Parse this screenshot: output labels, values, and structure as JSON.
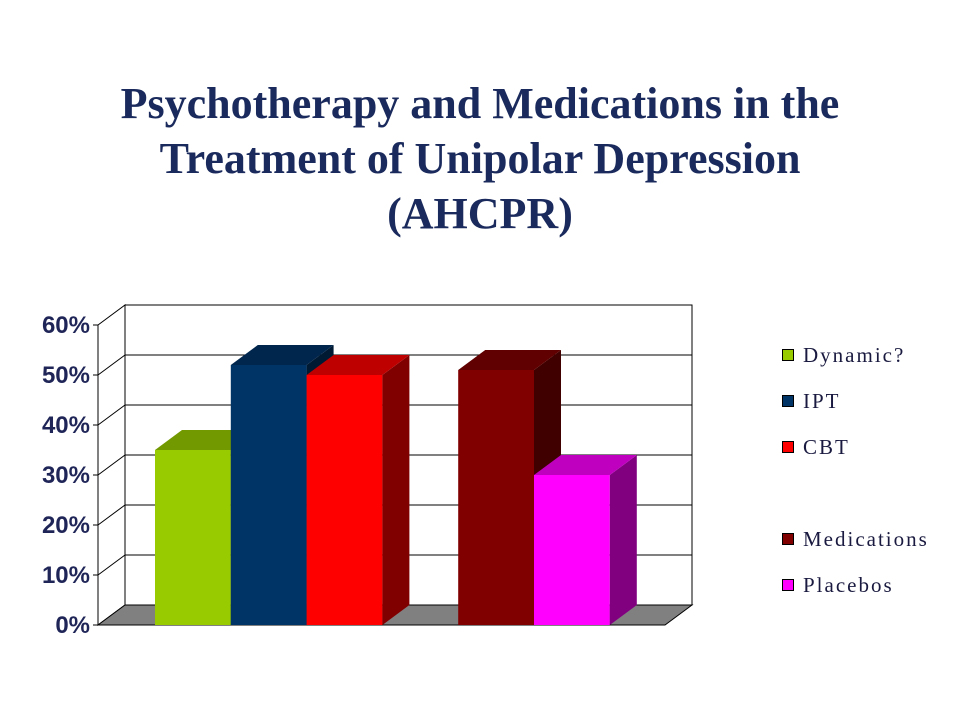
{
  "chart_data": {
    "type": "bar",
    "title": "Psychotherapy and Medications in the Treatment of Unipolar Depression (AHCPR)",
    "ylim": [
      0,
      60
    ],
    "yticks": [
      "0%",
      "10%",
      "20%",
      "30%",
      "40%",
      "50%",
      "60%"
    ],
    "grid": true,
    "three_d": true,
    "legend": "right",
    "series": [
      {
        "name": "Dynamic?",
        "values": [
          35
        ],
        "color": "#99cc00"
      },
      {
        "name": "IPT",
        "values": [
          52
        ],
        "color": "#003366"
      },
      {
        "name": "CBT",
        "values": [
          50
        ],
        "color": "#ff0000"
      },
      {
        "name": "Medications",
        "values": [
          51
        ],
        "color": "#800000"
      },
      {
        "name": "Placebos",
        "values": [
          30
        ],
        "color": "#ff00ff"
      }
    ]
  },
  "colors": {
    "title": "#1a2a5c",
    "axis_labels": "#1f2557",
    "legend_text": "#1a1a40",
    "wall": "#ffffff",
    "gridline": "#000000",
    "floor": "#808080"
  }
}
